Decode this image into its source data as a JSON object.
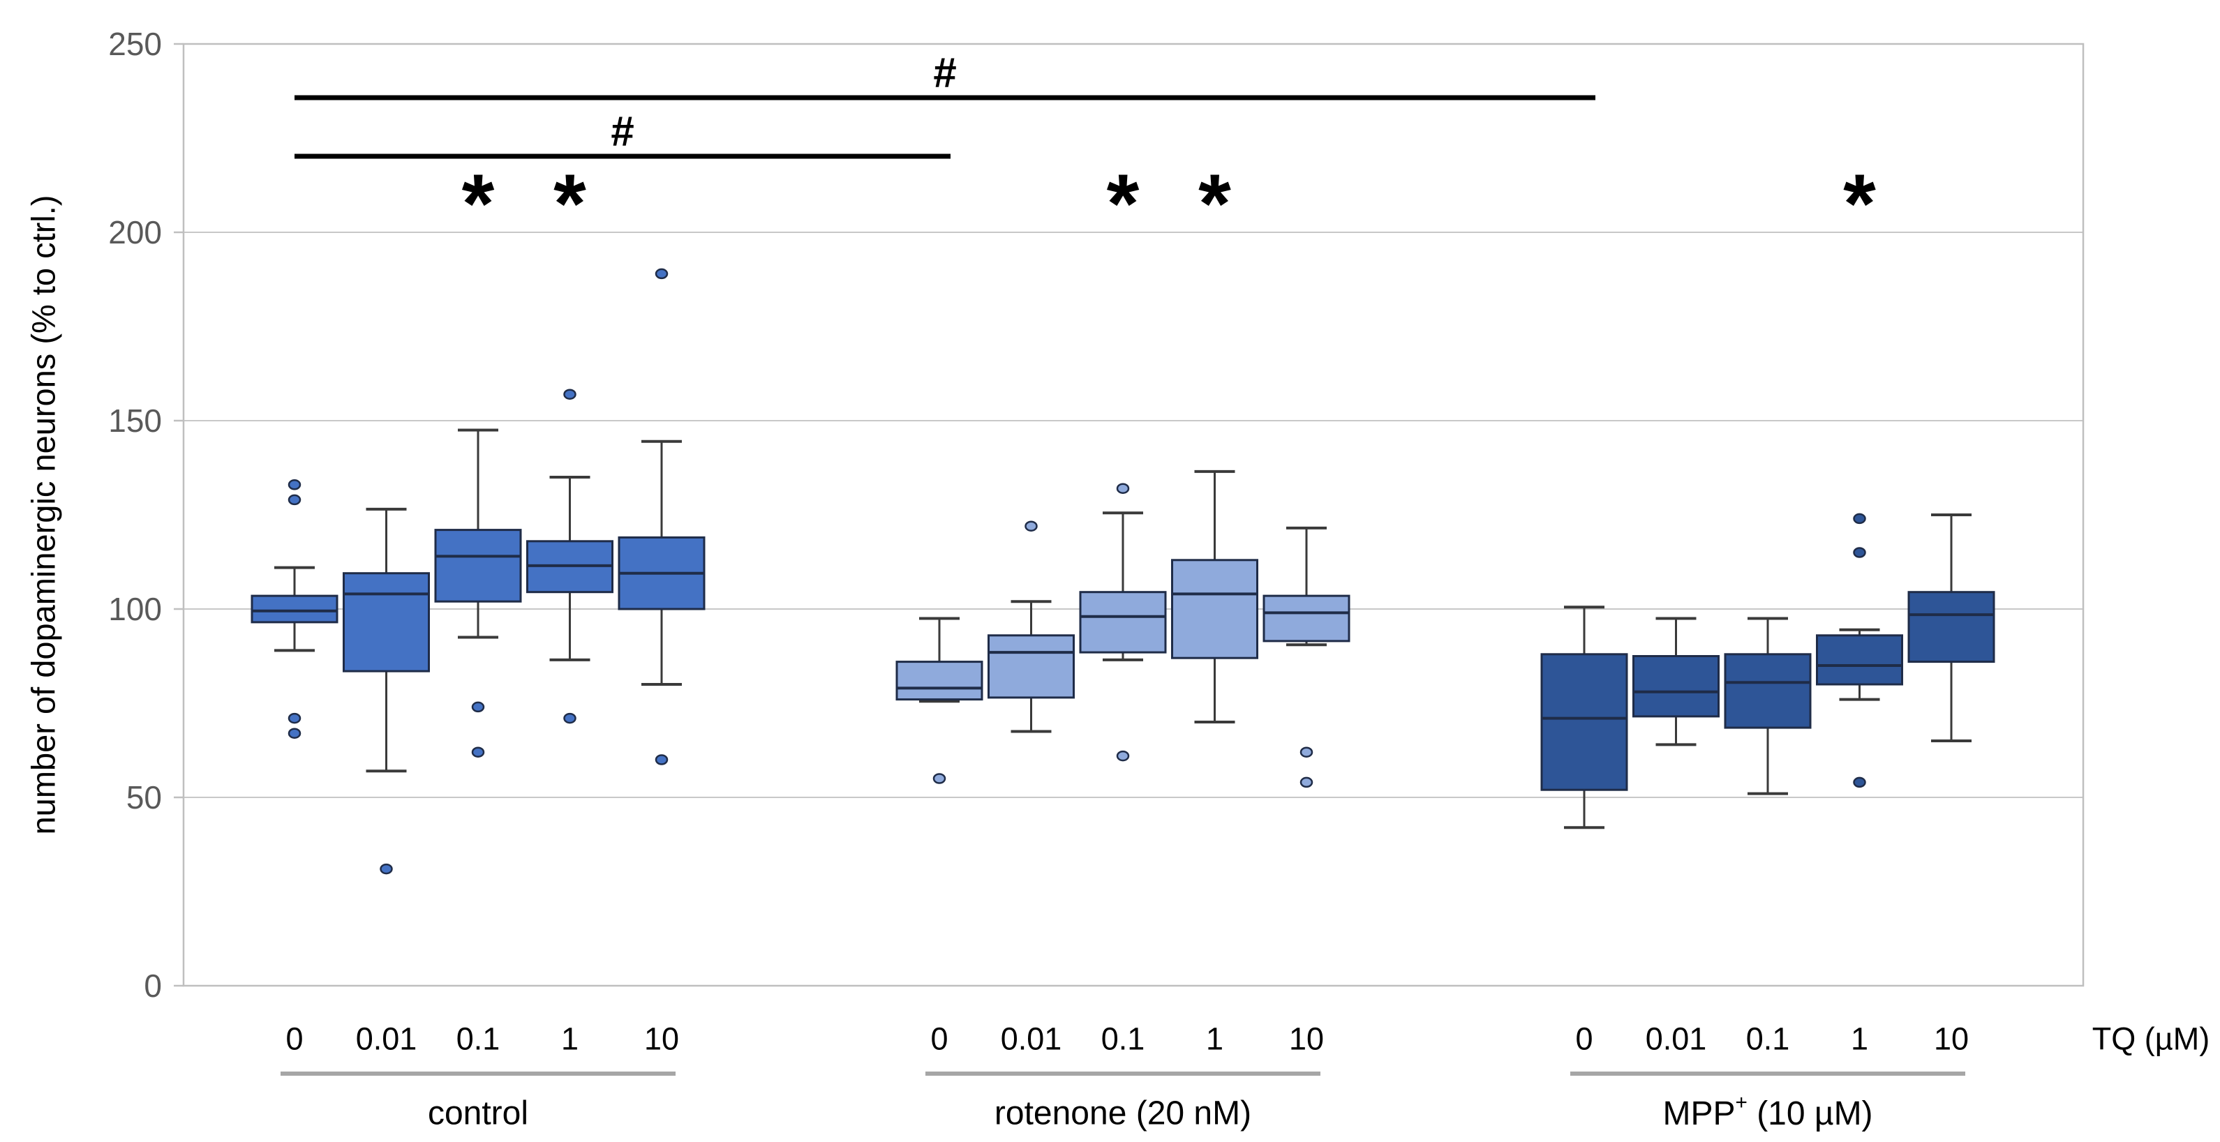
{
  "chart_data": {
    "type": "boxplot",
    "title": "",
    "ylabel": "number of dopaminergic neurons (% to ctrl.)",
    "x_unit_label": "TQ (µM)",
    "ylim": [
      0,
      250
    ],
    "yticks": [
      "0",
      "50",
      "100",
      "150",
      "200",
      "250"
    ],
    "grid": "horizontal",
    "legend_position": "none",
    "tq_levels": [
      "0",
      "0.01",
      "0.1",
      "1",
      "10"
    ],
    "groups": [
      {
        "name": "control",
        "color": "#4472C4",
        "boxes": [
          {
            "tq": "0",
            "low": 89,
            "q1": 96.5,
            "median": 99.5,
            "q3": 103.5,
            "high": 111,
            "outliers": [
              133,
              129,
              71,
              67
            ],
            "star": false
          },
          {
            "tq": "0.01",
            "low": 57,
            "q1": 83.5,
            "median": 104,
            "q3": 109.5,
            "high": 126.5,
            "outliers": [
              31
            ],
            "star": false
          },
          {
            "tq": "0.1",
            "low": 92.5,
            "q1": 102,
            "median": 114,
            "q3": 121,
            "high": 147.5,
            "outliers": [
              74,
              62
            ],
            "star": true
          },
          {
            "tq": "1",
            "low": 86.5,
            "q1": 104.5,
            "median": 111.5,
            "q3": 118,
            "high": 135,
            "outliers": [
              157,
              71
            ],
            "star": true
          },
          {
            "tq": "10",
            "low": 80,
            "q1": 100,
            "median": 109.5,
            "q3": 119,
            "high": 144.5,
            "outliers": [
              189,
              60
            ],
            "star": false
          }
        ]
      },
      {
        "name": "rotenone (20 nM)",
        "color": "#8FAADC",
        "boxes": [
          {
            "tq": "0",
            "low": 75.5,
            "q1": 76,
            "median": 79,
            "q3": 86,
            "high": 97.5,
            "outliers": [
              55
            ],
            "star": false
          },
          {
            "tq": "0.01",
            "low": 67.5,
            "q1": 76.5,
            "median": 88.5,
            "q3": 93,
            "high": 102,
            "outliers": [
              122
            ],
            "star": false
          },
          {
            "tq": "0.1",
            "low": 86.5,
            "q1": 88.5,
            "median": 98,
            "q3": 104.5,
            "high": 125.5,
            "outliers": [
              132,
              61
            ],
            "star": true
          },
          {
            "tq": "1",
            "low": 70,
            "q1": 87,
            "median": 104,
            "q3": 113,
            "high": 136.5,
            "outliers": [],
            "star": true
          },
          {
            "tq": "10",
            "low": 90.5,
            "q1": 91.5,
            "median": 99,
            "q3": 103.5,
            "high": 121.5,
            "outliers": [
              62,
              54
            ],
            "star": false
          }
        ]
      },
      {
        "name": "MPP+ (10 µM)",
        "name_base": "MPP",
        "name_sup": "+",
        "name_rest": " (10 µM)",
        "color": "#2E5597",
        "boxes": [
          {
            "tq": "0",
            "low": 42,
            "q1": 52,
            "median": 71,
            "q3": 88,
            "high": 100.5,
            "outliers": [],
            "star": false
          },
          {
            "tq": "0.01",
            "low": 64,
            "q1": 71.5,
            "median": 78,
            "q3": 87.5,
            "high": 97.5,
            "outliers": [],
            "star": false
          },
          {
            "tq": "0.1",
            "low": 51,
            "q1": 68.5,
            "median": 80.5,
            "q3": 88,
            "high": 97.5,
            "outliers": [],
            "star": false
          },
          {
            "tq": "1",
            "low": 76,
            "q1": 80,
            "median": 85,
            "q3": 93,
            "high": 94.5,
            "outliers": [
              124,
              115,
              54
            ],
            "star": true
          },
          {
            "tq": "10",
            "low": 65,
            "q1": 86,
            "median": 98.5,
            "q3": 104.5,
            "high": 125,
            "outliers": [],
            "star": false
          }
        ]
      }
    ],
    "significance_bars": [
      {
        "symbol": "#",
        "from_group": 0,
        "from_box": 0,
        "to_group": 2,
        "to_box": 0,
        "level": 1
      },
      {
        "symbol": "#",
        "from_group": 0,
        "from_box": 0,
        "to_group": 1,
        "to_box": 0,
        "level": 2
      }
    ],
    "star_symbol": "*",
    "colors": {
      "grid": "#C8C8C8",
      "frame": "#BFBFBF",
      "tick_text": "#595959",
      "axis_text": "#000000",
      "box_border": "#1F2C48",
      "whisker": "#3A3A3A",
      "underline": "#A6A6A6",
      "sig_bar": "#000000"
    }
  }
}
